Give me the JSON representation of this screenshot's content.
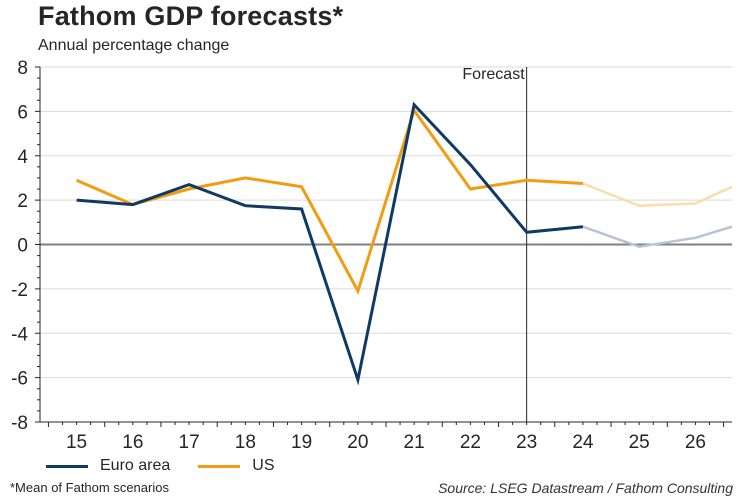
{
  "header": {
    "title": "Fathom GDP forecasts*",
    "subtitle": "Annual percentage change"
  },
  "footer": {
    "footnote": "*Mean of Fathom scenarios",
    "source": "Source: LSEG Datastream / Fathom Consulting"
  },
  "colors": {
    "euro": "#0f3a64",
    "euro_forecast": "#b7c4d4",
    "us": "#f39c12",
    "us_forecast": "#fbdcaa"
  },
  "chart_data": {
    "type": "line",
    "title": "Fathom GDP forecasts*",
    "subtitle": "Annual percentage change",
    "xlabel": "",
    "ylabel": "",
    "x": [
      15,
      16,
      17,
      18,
      19,
      20,
      21,
      22,
      23,
      24,
      25,
      26,
      26.65
    ],
    "x_tick_labels": [
      "15",
      "16",
      "17",
      "18",
      "19",
      "20",
      "21",
      "22",
      "23",
      "24",
      "25",
      "26"
    ],
    "y_tick_labels": [
      "8",
      "6",
      "4",
      "2",
      "0",
      "-2",
      "-4",
      "-6",
      "-8"
    ],
    "xlim": [
      14.35,
      26.65
    ],
    "ylim": [
      -8,
      8
    ],
    "grid": true,
    "forecast_marker": {
      "x": 23,
      "label": "Forecast",
      "forecast_style_from": 24
    },
    "series": [
      {
        "name": "Euro area",
        "values": [
          2.0,
          1.8,
          2.7,
          1.75,
          1.6,
          -6.1,
          6.3,
          3.6,
          0.55,
          0.8,
          -0.1,
          0.3,
          0.8
        ]
      },
      {
        "name": "US",
        "values": [
          2.9,
          1.8,
          2.5,
          3.0,
          2.6,
          -2.1,
          6.05,
          2.5,
          2.9,
          2.75,
          1.75,
          1.85,
          2.6
        ]
      }
    ],
    "legend": [
      "Euro area",
      "US"
    ],
    "legend_position": "bottom-left"
  }
}
